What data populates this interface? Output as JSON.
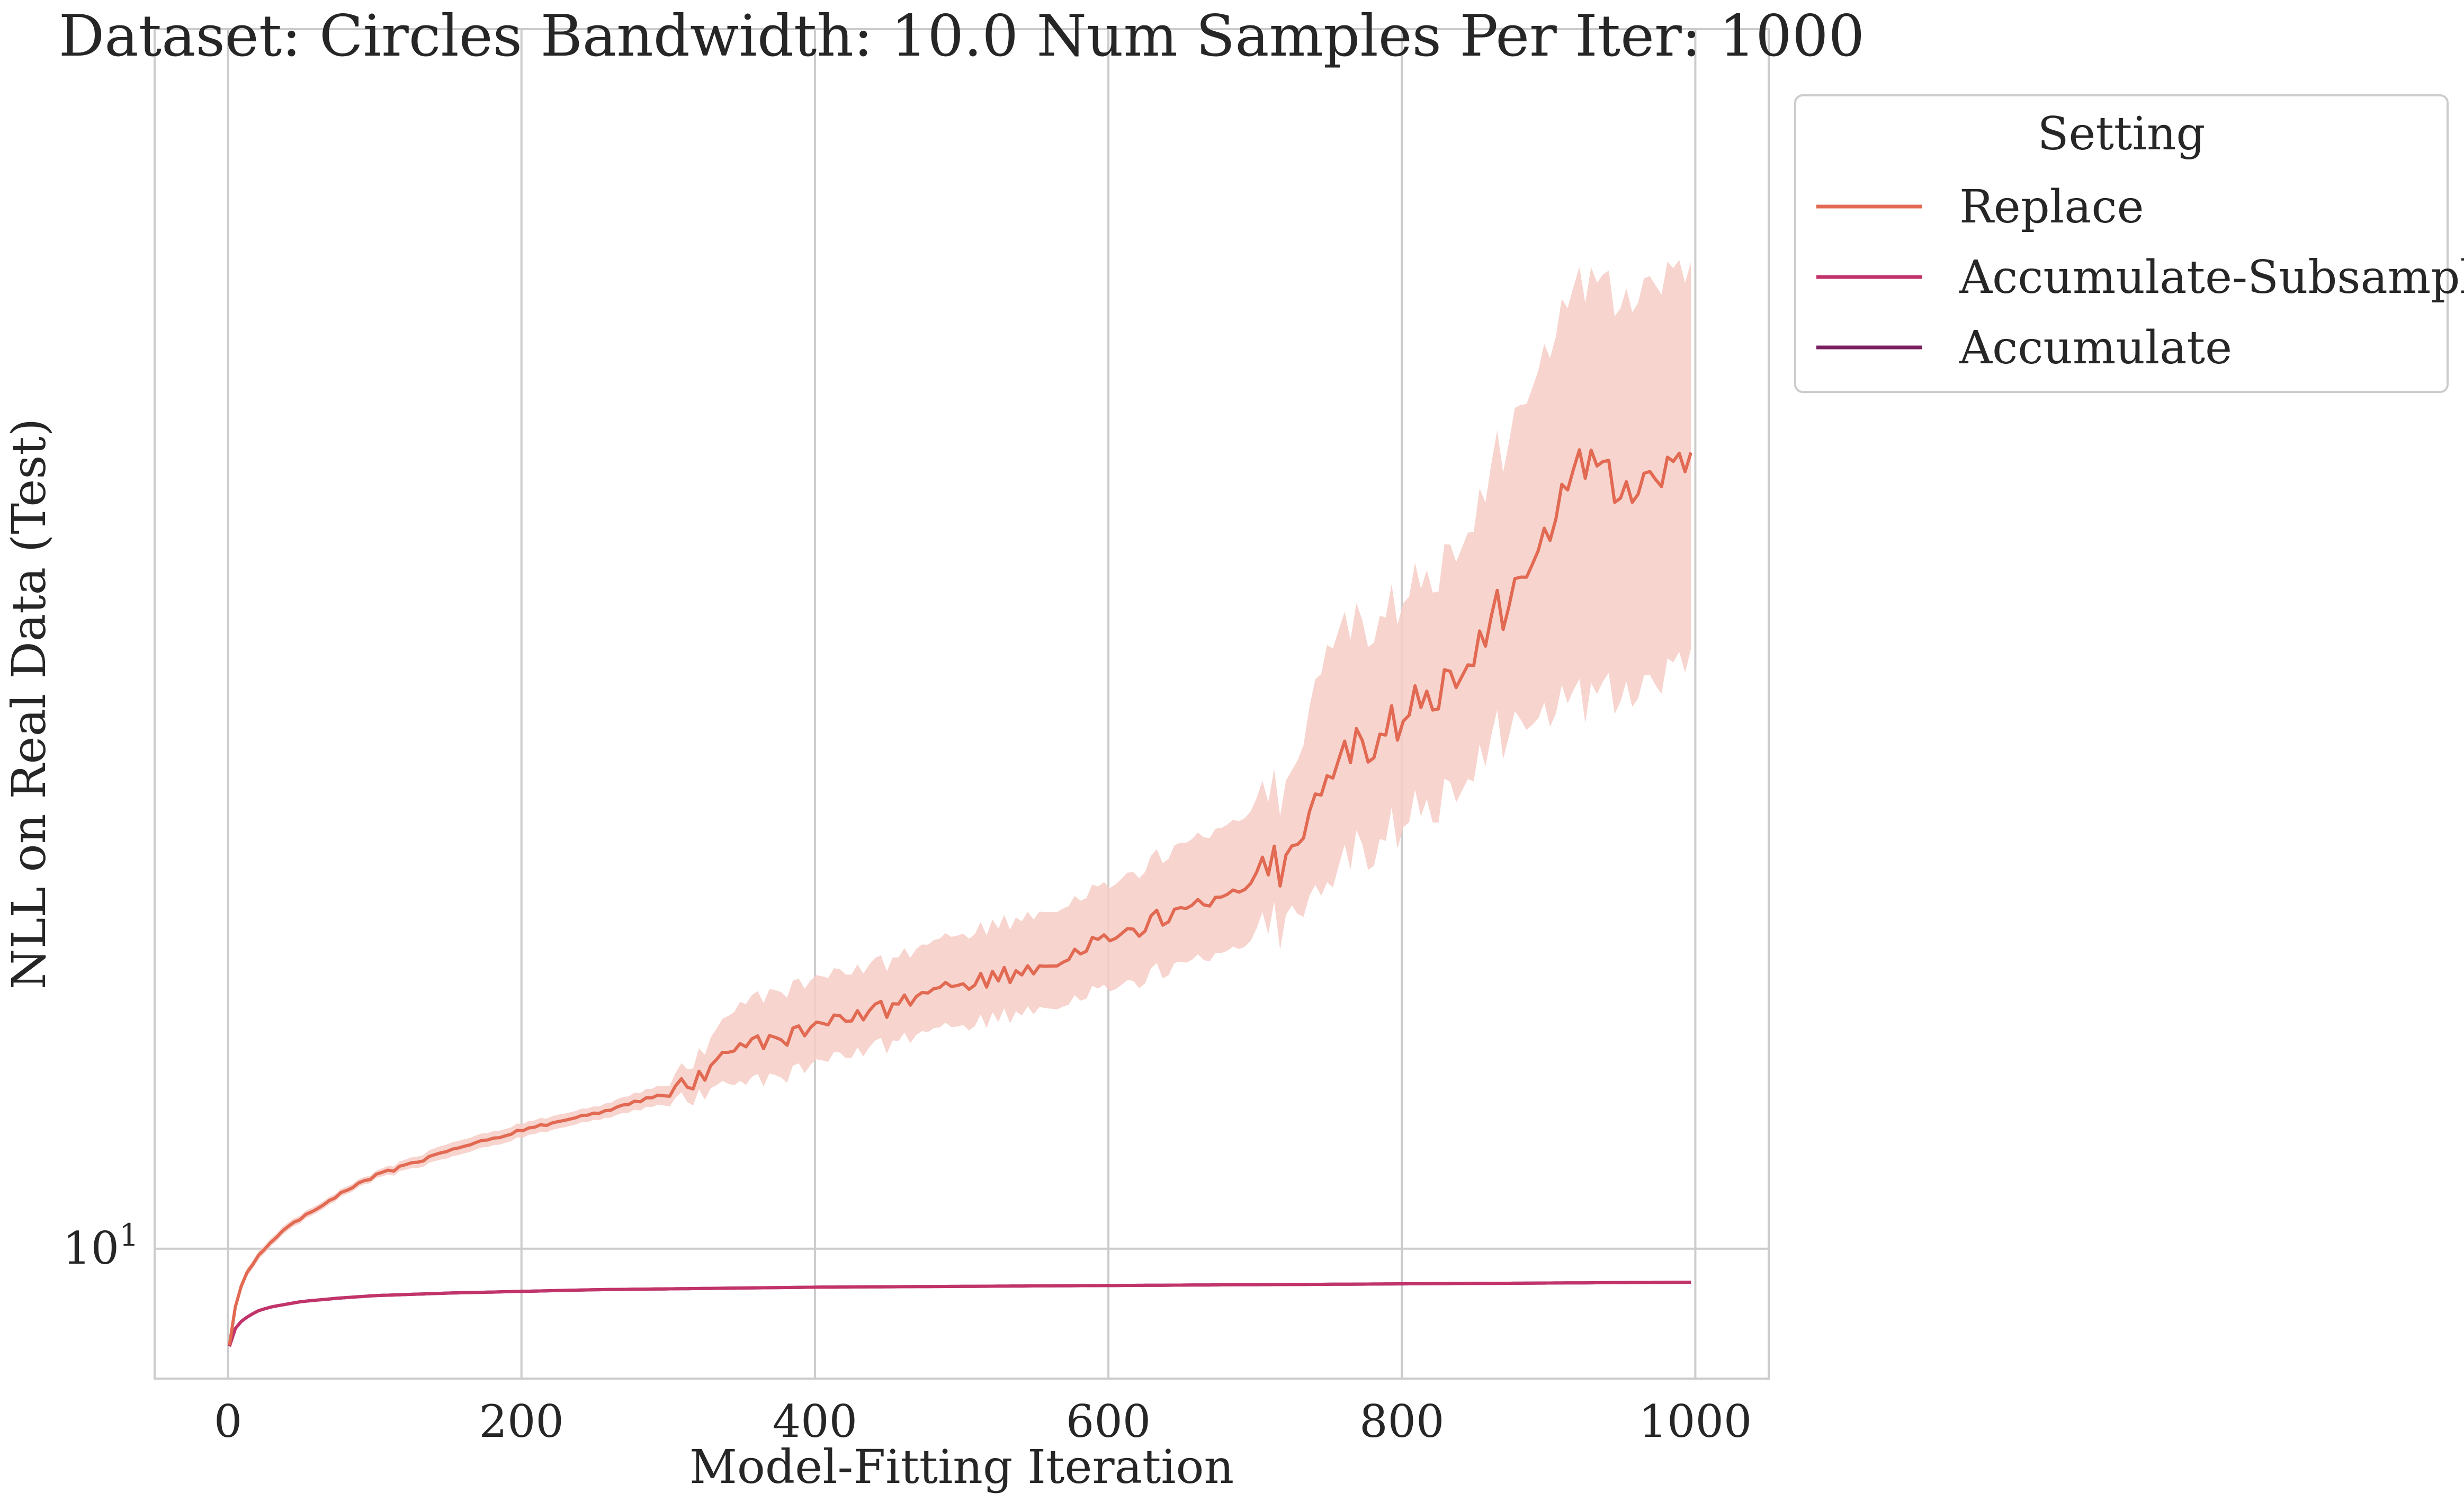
{
  "chart_data": {
    "type": "line",
    "title": "Dataset: Circles Bandwidth: 10.0 Num Samples Per Iter: 1000",
    "xlabel": "Model-Fitting Iteration",
    "ylabel": "NLL on Real Data (Test)",
    "xlim": [
      -50,
      1050
    ],
    "ylim": [
      8.5,
      46
    ],
    "yscale": "log",
    "xticks": [
      0,
      200,
      400,
      600,
      800,
      1000
    ],
    "xtick_labels": [
      "0",
      "200",
      "400",
      "600",
      "800",
      "1000"
    ],
    "yticks": [
      10
    ],
    "ytick_labels": [
      "10"
    ],
    "ytick_exponent": "1",
    "grid": true,
    "legend": {
      "title": "Setting",
      "placement": "outside-upper-right"
    },
    "x": [
      1,
      5,
      10,
      20,
      30,
      50,
      75,
      100,
      150,
      200,
      250,
      300,
      325,
      350,
      375,
      400,
      450,
      500,
      550,
      600,
      650,
      700,
      725,
      750,
      775,
      800,
      825,
      850,
      875,
      900,
      925,
      950,
      975,
      1000
    ],
    "series": [
      {
        "name": "Replace",
        "color": "#e26952",
        "band_color": "#f6cdc5",
        "values": [
          8.85,
          9.3,
          9.6,
          9.9,
          10.1,
          10.4,
          10.7,
          10.95,
          11.3,
          11.6,
          11.85,
          12.15,
          12.4,
          12.9,
          13.0,
          13.2,
          13.5,
          13.9,
          14.2,
          14.7,
          15.3,
          15.8,
          16.4,
          18.2,
          18.8,
          19.4,
          20.2,
          21.3,
          22.7,
          24.6,
          26.8,
          25.6,
          26.6,
          27.2
        ],
        "lower": [
          8.85,
          9.25,
          9.55,
          9.85,
          10.05,
          10.35,
          10.65,
          10.9,
          11.2,
          11.5,
          11.75,
          12.0,
          12.1,
          12.3,
          12.4,
          12.6,
          12.9,
          13.2,
          13.5,
          13.8,
          14.3,
          14.7,
          15.2,
          15.9,
          16.5,
          17.0,
          17.6,
          18.5,
          19.3,
          19.6,
          19.8,
          19.9,
          20.6,
          21.3
        ],
        "upper": [
          8.85,
          9.35,
          9.65,
          9.95,
          10.15,
          10.45,
          10.75,
          11.0,
          11.4,
          11.7,
          11.95,
          12.3,
          12.8,
          13.6,
          13.8,
          14.0,
          14.3,
          14.8,
          15.2,
          15.7,
          16.6,
          17.3,
          18.0,
          21.5,
          21.8,
          22.5,
          23.5,
          25.3,
          28.0,
          31.0,
          33.5,
          32.5,
          34.0,
          34.5
        ]
      },
      {
        "name": "Accumulate-Subsample",
        "color": "#c2336a",
        "values": [
          8.85,
          9.05,
          9.15,
          9.25,
          9.3,
          9.36,
          9.4,
          9.43,
          9.46,
          9.48,
          9.5,
          9.51,
          9.515,
          9.52,
          9.525,
          9.53,
          9.535,
          9.54,
          9.545,
          9.55,
          9.555,
          9.56,
          9.562,
          9.565,
          9.567,
          9.57,
          9.572,
          9.575,
          9.577,
          9.58,
          9.582,
          9.585,
          9.587,
          9.59
        ]
      },
      {
        "name": "Accumulate",
        "color": "#7a2060",
        "values": [
          8.85,
          9.05,
          9.15,
          9.25,
          9.3,
          9.36,
          9.4,
          9.43,
          9.46,
          9.48,
          9.5,
          9.51,
          9.515,
          9.52,
          9.525,
          9.53,
          9.535,
          9.54,
          9.545,
          9.55,
          9.555,
          9.56,
          9.562,
          9.565,
          9.567,
          9.57,
          9.572,
          9.575,
          9.577,
          9.58,
          9.582,
          9.585,
          9.587,
          9.59
        ]
      }
    ]
  }
}
